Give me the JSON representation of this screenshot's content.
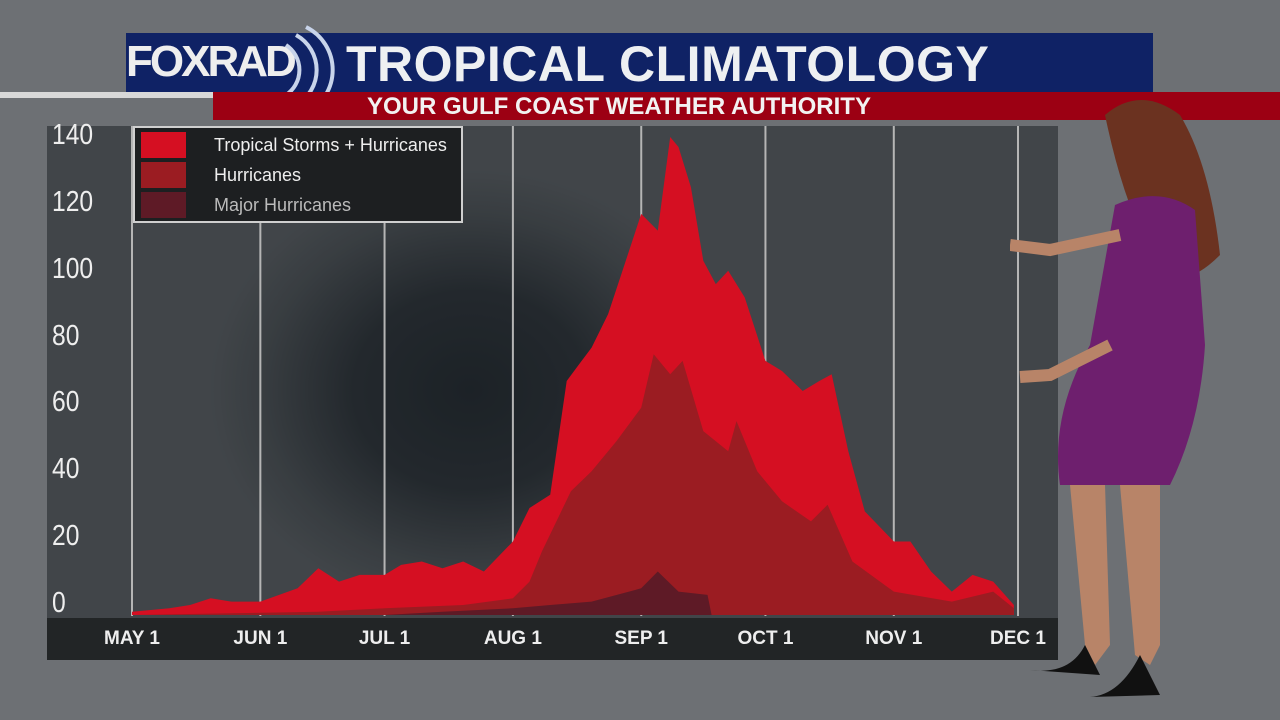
{
  "header": {
    "logo": "FOXRAD",
    "title": "TROPICAL CLIMATOLOGY",
    "subtitle": "YOUR GULF COAST WEATHER AUTHORITY"
  },
  "chart_data": {
    "type": "area",
    "title": "TROPICAL CLIMATOLOGY",
    "xlabel": "",
    "ylabel": "",
    "ylim": [
      0,
      140
    ],
    "yticks": [
      "140",
      "120",
      "100",
      "80",
      "60",
      "40",
      "20",
      "0"
    ],
    "xticks": [
      {
        "label": "MAY 1",
        "date": "05-01"
      },
      {
        "label": "JUN 1",
        "date": "06-01"
      },
      {
        "label": "JUL 1",
        "date": "07-01"
      },
      {
        "label": "AUG 1",
        "date": "08-01"
      },
      {
        "label": "SEP 1",
        "date": "09-01"
      },
      {
        "label": "OCT 1",
        "date": "10-01"
      },
      {
        "label": "NOV 1",
        "date": "11-01"
      },
      {
        "label": "DEC 1",
        "date": "12-01"
      }
    ],
    "grid": "vertical",
    "legend": "top-left",
    "series": [
      {
        "name": "Tropical Storms + Hurricanes",
        "color": "#d50f22",
        "points": [
          [
            "05-01",
            1
          ],
          [
            "05-10",
            2
          ],
          [
            "05-15",
            3
          ],
          [
            "05-20",
            5
          ],
          [
            "05-25",
            4
          ],
          [
            "06-01",
            4
          ],
          [
            "06-10",
            8
          ],
          [
            "06-15",
            14
          ],
          [
            "06-20",
            10
          ],
          [
            "06-25",
            12
          ],
          [
            "07-01",
            12
          ],
          [
            "07-05",
            15
          ],
          [
            "07-10",
            16
          ],
          [
            "07-15",
            14
          ],
          [
            "07-20",
            16
          ],
          [
            "07-25",
            13
          ],
          [
            "08-01",
            22
          ],
          [
            "08-05",
            32
          ],
          [
            "08-10",
            36
          ],
          [
            "08-14",
            70
          ],
          [
            "08-17",
            75
          ],
          [
            "08-20",
            80
          ],
          [
            "08-24",
            90
          ],
          [
            "08-28",
            105
          ],
          [
            "09-01",
            120
          ],
          [
            "09-05",
            115
          ],
          [
            "09-08",
            143
          ],
          [
            "09-10",
            140
          ],
          [
            "09-13",
            128
          ],
          [
            "09-16",
            106
          ],
          [
            "09-19",
            99
          ],
          [
            "09-22",
            103
          ],
          [
            "09-26",
            95
          ],
          [
            "10-01",
            76
          ],
          [
            "10-05",
            73
          ],
          [
            "10-10",
            67
          ],
          [
            "10-14",
            70
          ],
          [
            "10-17",
            72
          ],
          [
            "10-21",
            49
          ],
          [
            "10-25",
            31
          ],
          [
            "11-01",
            22
          ],
          [
            "11-05",
            22
          ],
          [
            "11-10",
            13
          ],
          [
            "11-15",
            7
          ],
          [
            "11-20",
            12
          ],
          [
            "11-25",
            10
          ],
          [
            "11-30",
            3
          ]
        ]
      },
      {
        "name": "Hurricanes",
        "color": "#9b1c22",
        "points": [
          [
            "05-01",
            0
          ],
          [
            "06-15",
            1
          ],
          [
            "07-01",
            2
          ],
          [
            "07-20",
            3
          ],
          [
            "08-01",
            5
          ],
          [
            "08-05",
            10
          ],
          [
            "08-08",
            19
          ],
          [
            "08-15",
            37
          ],
          [
            "08-20",
            43
          ],
          [
            "08-26",
            52
          ],
          [
            "09-01",
            62
          ],
          [
            "09-04",
            78
          ],
          [
            "09-08",
            72
          ],
          [
            "09-11",
            76
          ],
          [
            "09-16",
            55
          ],
          [
            "09-22",
            49
          ],
          [
            "09-24",
            58
          ],
          [
            "09-29",
            43
          ],
          [
            "10-05",
            34
          ],
          [
            "10-12",
            28
          ],
          [
            "10-16",
            33
          ],
          [
            "10-22",
            16
          ],
          [
            "11-01",
            7
          ],
          [
            "11-15",
            4
          ],
          [
            "11-25",
            7
          ],
          [
            "11-30",
            2
          ]
        ]
      },
      {
        "name": "Major Hurricanes",
        "color": "#5e1a26",
        "points": [
          [
            "05-01",
            0
          ],
          [
            "07-01",
            0
          ],
          [
            "07-15",
            1
          ],
          [
            "08-01",
            2
          ],
          [
            "08-10",
            3
          ],
          [
            "08-20",
            4
          ],
          [
            "09-01",
            8
          ],
          [
            "09-05",
            13
          ],
          [
            "09-10",
            7
          ],
          [
            "09-17",
            6
          ],
          [
            "09-18",
            0
          ]
        ]
      }
    ]
  }
}
